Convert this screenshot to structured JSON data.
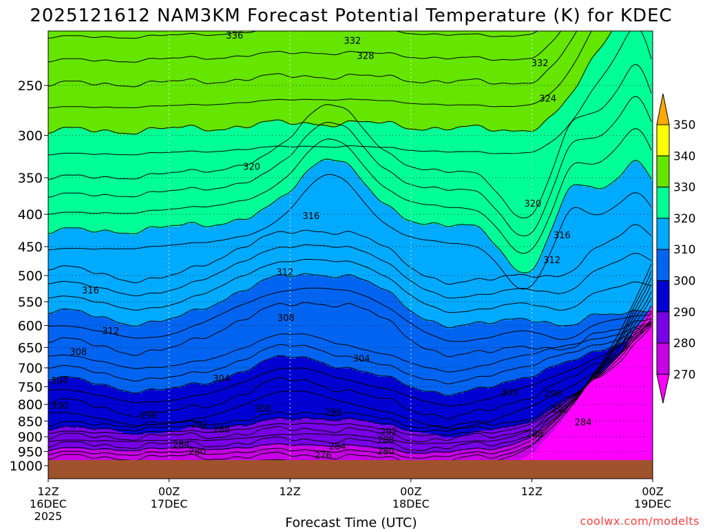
{
  "chart_data": {
    "type": "heatmap",
    "title": "2025121612 NAM3KM Forecast Potential Temperature (K) for KDEC",
    "xlabel": "Forecast Time (UTC)",
    "ylabel": "",
    "x_ticks": [
      {
        "label": "12Z",
        "sub": "16DEC",
        "sub2": "2025",
        "hours": 0
      },
      {
        "label": "00Z",
        "sub": "17DEC",
        "sub2": "",
        "hours": 12
      },
      {
        "label": "12Z",
        "sub": "",
        "sub2": "",
        "hours": 24
      },
      {
        "label": "00Z",
        "sub": "18DEC",
        "sub2": "",
        "hours": 36
      },
      {
        "label": "12Z",
        "sub": "",
        "sub2": "",
        "hours": 48
      },
      {
        "label": "00Z",
        "sub": "19DEC",
        "sub2": "",
        "hours": 60
      }
    ],
    "x_range_hours": [
      0,
      60
    ],
    "y_ticks": [
      250,
      300,
      350,
      400,
      450,
      500,
      550,
      600,
      650,
      700,
      750,
      800,
      850,
      900,
      950,
      1000
    ],
    "y_range_hPa": [
      200,
      1025
    ],
    "colorbar": {
      "levels": [
        270,
        280,
        290,
        300,
        310,
        320,
        330,
        340,
        350
      ],
      "colors": [
        "#ff00ff",
        "#c800e6",
        "#7800e6",
        "#0000d2",
        "#0064f0",
        "#00aaff",
        "#00ff96",
        "#64e600",
        "#ffff00",
        "#ffaa00"
      ]
    },
    "surface_color": "#a0522d",
    "contour_labels": [
      {
        "text": "336",
        "hours": 18.5,
        "hPa": 208
      },
      {
        "text": "332",
        "hours": 30.2,
        "hPa": 212
      },
      {
        "text": "328",
        "hours": 31.5,
        "hPa": 224
      },
      {
        "text": "332",
        "hours": 48.8,
        "hPa": 230
      },
      {
        "text": "324",
        "hours": 49.6,
        "hPa": 262
      },
      {
        "text": "320",
        "hours": 20.2,
        "hPa": 336
      },
      {
        "text": "320",
        "hours": 48.1,
        "hPa": 384
      },
      {
        "text": "316",
        "hours": 26.1,
        "hPa": 402
      },
      {
        "text": "316",
        "hours": 51.0,
        "hPa": 431
      },
      {
        "text": "312",
        "hours": 50.0,
        "hPa": 472
      },
      {
        "text": "312",
        "hours": 23.5,
        "hPa": 493
      },
      {
        "text": "316",
        "hours": 4.2,
        "hPa": 527
      },
      {
        "text": "308",
        "hours": 23.6,
        "hPa": 583
      },
      {
        "text": "312",
        "hours": 6.2,
        "hPa": 611
      },
      {
        "text": "308",
        "hours": 3.0,
        "hPa": 660
      },
      {
        "text": "304",
        "hours": 31.1,
        "hPa": 676
      },
      {
        "text": "304",
        "hours": 17.2,
        "hPa": 727
      },
      {
        "text": "304",
        "hours": 1.1,
        "hPa": 732
      },
      {
        "text": "300",
        "hours": 45.8,
        "hPa": 765
      },
      {
        "text": "296",
        "hours": 50.1,
        "hPa": 768
      },
      {
        "text": "300",
        "hours": 1.1,
        "hPa": 803
      },
      {
        "text": "300",
        "hours": 21.3,
        "hPa": 812
      },
      {
        "text": "292",
        "hours": 50.8,
        "hPa": 813
      },
      {
        "text": "296",
        "hours": 28.3,
        "hPa": 822
      },
      {
        "text": "296",
        "hours": 10.0,
        "hPa": 833
      },
      {
        "text": "284",
        "hours": 53.1,
        "hPa": 853
      },
      {
        "text": "292",
        "hours": 15.0,
        "hPa": 860
      },
      {
        "text": "288",
        "hours": 17.2,
        "hPa": 875
      },
      {
        "text": "292",
        "hours": 33.8,
        "hPa": 883
      },
      {
        "text": "288",
        "hours": 48.3,
        "hPa": 890
      },
      {
        "text": "288",
        "hours": 33.5,
        "hPa": 910
      },
      {
        "text": "284",
        "hours": 13.2,
        "hPa": 925
      },
      {
        "text": "284",
        "hours": 28.7,
        "hPa": 931
      },
      {
        "text": "280",
        "hours": 33.5,
        "hPa": 947
      },
      {
        "text": "280",
        "hours": 14.8,
        "hPa": 949
      },
      {
        "text": "276",
        "hours": 27.3,
        "hPa": 962
      }
    ]
  },
  "credit": "coolwx.com/modelts"
}
